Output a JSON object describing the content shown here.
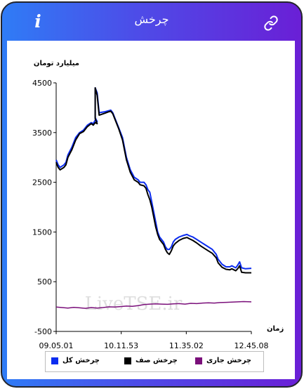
{
  "header": {
    "title": "چرخش",
    "info_icon": "info-icon",
    "link_icon": "link-icon",
    "info_glyph": "i"
  },
  "colors": {
    "header_gradient_start": "#2f7cf6",
    "header_gradient_end": "#6a1fd6",
    "series_total": "#0b2cf0",
    "series_zero": "#000000",
    "series_current": "#7a0f7a"
  },
  "watermark": "LiveTSE.ir",
  "chart_data": {
    "type": "line",
    "ylabel": "میلیارد تومان",
    "xlabel": "زمان",
    "ylim": [
      -500,
      4500
    ],
    "yticks": [
      4500,
      3500,
      2500,
      1500,
      500,
      -500
    ],
    "xticks": [
      "09.05.01",
      "10.11.53",
      "11.35.02",
      "12.45.08"
    ],
    "x_range": [
      "09.05.01",
      "12.45.08"
    ],
    "grid": false,
    "legend_position": "bottom",
    "series": [
      {
        "name": "چرخش کل",
        "color": "#0b2cf0",
        "points": [
          [
            0,
            2950
          ],
          [
            0.01,
            2850
          ],
          [
            0.02,
            2800
          ],
          [
            0.04,
            2850
          ],
          [
            0.05,
            2900
          ],
          [
            0.06,
            3050
          ],
          [
            0.08,
            3200
          ],
          [
            0.1,
            3400
          ],
          [
            0.12,
            3500
          ],
          [
            0.14,
            3550
          ],
          [
            0.16,
            3650
          ],
          [
            0.18,
            3700
          ],
          [
            0.19,
            3680
          ],
          [
            0.2,
            3750
          ],
          [
            0.21,
            3720
          ],
          [
            0.2,
            3800
          ],
          [
            0.2,
            4400
          ],
          [
            0.21,
            4300
          ],
          [
            0.22,
            3900
          ],
          [
            0.25,
            3920
          ],
          [
            0.27,
            3940
          ],
          [
            0.28,
            3950
          ],
          [
            0.29,
            3900
          ],
          [
            0.3,
            3800
          ],
          [
            0.32,
            3600
          ],
          [
            0.34,
            3400
          ],
          [
            0.36,
            3000
          ],
          [
            0.38,
            2750
          ],
          [
            0.4,
            2600
          ],
          [
            0.42,
            2550
          ],
          [
            0.43,
            2500
          ],
          [
            0.45,
            2500
          ],
          [
            0.46,
            2450
          ],
          [
            0.47,
            2350
          ],
          [
            0.48,
            2300
          ],
          [
            0.49,
            2100
          ],
          [
            0.5,
            1900
          ],
          [
            0.51,
            1700
          ],
          [
            0.52,
            1500
          ],
          [
            0.53,
            1400
          ],
          [
            0.55,
            1300
          ],
          [
            0.56,
            1200
          ],
          [
            0.57,
            1150
          ],
          [
            0.58,
            1150
          ],
          [
            0.59,
            1200
          ],
          [
            0.6,
            1300
          ],
          [
            0.61,
            1350
          ],
          [
            0.63,
            1400
          ],
          [
            0.65,
            1430
          ],
          [
            0.67,
            1450
          ],
          [
            0.68,
            1430
          ],
          [
            0.7,
            1400
          ],
          [
            0.72,
            1350
          ],
          [
            0.74,
            1300
          ],
          [
            0.76,
            1250
          ],
          [
            0.78,
            1200
          ],
          [
            0.8,
            1150
          ],
          [
            0.82,
            1050
          ],
          [
            0.83,
            950
          ],
          [
            0.85,
            850
          ],
          [
            0.87,
            800
          ],
          [
            0.89,
            800
          ],
          [
            0.9,
            820
          ],
          [
            0.91,
            800
          ],
          [
            0.92,
            780
          ],
          [
            0.93,
            830
          ],
          [
            0.94,
            900
          ],
          [
            0.95,
            780
          ],
          [
            0.97,
            760
          ],
          [
            1.0,
            770
          ]
        ]
      },
      {
        "name": "چرخش صف",
        "color": "#000000",
        "points": [
          [
            0,
            2900
          ],
          [
            0.01,
            2800
          ],
          [
            0.02,
            2750
          ],
          [
            0.04,
            2800
          ],
          [
            0.05,
            2850
          ],
          [
            0.06,
            3000
          ],
          [
            0.08,
            3150
          ],
          [
            0.1,
            3350
          ],
          [
            0.12,
            3480
          ],
          [
            0.14,
            3520
          ],
          [
            0.16,
            3620
          ],
          [
            0.18,
            3680
          ],
          [
            0.19,
            3650
          ],
          [
            0.2,
            3700
          ],
          [
            0.21,
            3680
          ],
          [
            0.2,
            3780
          ],
          [
            0.2,
            4400
          ],
          [
            0.21,
            4250
          ],
          [
            0.22,
            3850
          ],
          [
            0.25,
            3890
          ],
          [
            0.27,
            3920
          ],
          [
            0.28,
            3930
          ],
          [
            0.29,
            3880
          ],
          [
            0.3,
            3780
          ],
          [
            0.32,
            3580
          ],
          [
            0.34,
            3350
          ],
          [
            0.36,
            2950
          ],
          [
            0.38,
            2700
          ],
          [
            0.4,
            2550
          ],
          [
            0.42,
            2500
          ],
          [
            0.43,
            2450
          ],
          [
            0.45,
            2430
          ],
          [
            0.46,
            2380
          ],
          [
            0.47,
            2250
          ],
          [
            0.48,
            2150
          ],
          [
            0.49,
            2000
          ],
          [
            0.5,
            1800
          ],
          [
            0.51,
            1600
          ],
          [
            0.52,
            1450
          ],
          [
            0.53,
            1350
          ],
          [
            0.55,
            1250
          ],
          [
            0.56,
            1150
          ],
          [
            0.57,
            1080
          ],
          [
            0.58,
            1050
          ],
          [
            0.59,
            1120
          ],
          [
            0.6,
            1220
          ],
          [
            0.61,
            1270
          ],
          [
            0.63,
            1330
          ],
          [
            0.65,
            1370
          ],
          [
            0.67,
            1390
          ],
          [
            0.68,
            1370
          ],
          [
            0.7,
            1330
          ],
          [
            0.72,
            1280
          ],
          [
            0.74,
            1220
          ],
          [
            0.76,
            1170
          ],
          [
            0.78,
            1120
          ],
          [
            0.8,
            1070
          ],
          [
            0.82,
            980
          ],
          [
            0.83,
            880
          ],
          [
            0.85,
            790
          ],
          [
            0.87,
            750
          ],
          [
            0.89,
            740
          ],
          [
            0.9,
            760
          ],
          [
            0.91,
            740
          ],
          [
            0.92,
            720
          ],
          [
            0.93,
            760
          ],
          [
            0.94,
            820
          ],
          [
            0.95,
            690
          ],
          [
            0.97,
            680
          ],
          [
            1.0,
            680
          ]
        ]
      },
      {
        "name": "چرخش جاری",
        "color": "#7a0f7a",
        "points": [
          [
            0,
            -10
          ],
          [
            0.03,
            -20
          ],
          [
            0.06,
            -30
          ],
          [
            0.09,
            -15
          ],
          [
            0.12,
            -25
          ],
          [
            0.15,
            -35
          ],
          [
            0.18,
            -20
          ],
          [
            0.21,
            -30
          ],
          [
            0.24,
            -20
          ],
          [
            0.27,
            -5
          ],
          [
            0.3,
            -10
          ],
          [
            0.33,
            0
          ],
          [
            0.36,
            10
          ],
          [
            0.39,
            5
          ],
          [
            0.42,
            20
          ],
          [
            0.45,
            40
          ],
          [
            0.48,
            50
          ],
          [
            0.51,
            55
          ],
          [
            0.54,
            50
          ],
          [
            0.57,
            45
          ],
          [
            0.6,
            55
          ],
          [
            0.63,
            60
          ],
          [
            0.66,
            50
          ],
          [
            0.69,
            65
          ],
          [
            0.72,
            60
          ],
          [
            0.75,
            70
          ],
          [
            0.78,
            75
          ],
          [
            0.81,
            70
          ],
          [
            0.84,
            80
          ],
          [
            0.87,
            85
          ],
          [
            0.9,
            90
          ],
          [
            0.93,
            95
          ],
          [
            0.96,
            100
          ],
          [
            1.0,
            95
          ]
        ]
      }
    ]
  }
}
